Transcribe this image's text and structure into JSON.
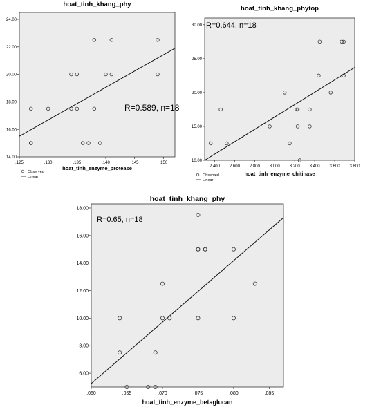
{
  "chart_data": [
    {
      "type": "scatter",
      "title": "hoat_tinh_khang_phy",
      "xlabel": "hoat_tinh_enzyme_protease",
      "ylabel": "",
      "annotation": "R=0.589, n=18",
      "xlim": [
        0.125,
        0.152
      ],
      "ylim": [
        14.0,
        24.5
      ],
      "xticks": [
        ".125",
        ".130",
        ".135",
        ".140",
        ".145",
        ".150"
      ],
      "yticks": [
        "14.00",
        "16.00",
        "18.00",
        "20.00",
        "22.00",
        "24.00"
      ],
      "legend": [
        "Observed",
        "Linear"
      ],
      "legend_position": "bottom-left",
      "points": [
        {
          "x": 0.127,
          "y": 17.5
        },
        {
          "x": 0.127,
          "y": 15.0
        },
        {
          "x": 0.127,
          "y": 15.0
        },
        {
          "x": 0.13,
          "y": 17.5
        },
        {
          "x": 0.134,
          "y": 20.0
        },
        {
          "x": 0.134,
          "y": 17.5
        },
        {
          "x": 0.135,
          "y": 20.0
        },
        {
          "x": 0.135,
          "y": 17.5
        },
        {
          "x": 0.136,
          "y": 15.0
        },
        {
          "x": 0.137,
          "y": 15.0
        },
        {
          "x": 0.138,
          "y": 22.5
        },
        {
          "x": 0.138,
          "y": 17.5
        },
        {
          "x": 0.139,
          "y": 15.0
        },
        {
          "x": 0.14,
          "y": 20.0
        },
        {
          "x": 0.141,
          "y": 22.5
        },
        {
          "x": 0.141,
          "y": 20.0
        },
        {
          "x": 0.149,
          "y": 22.5
        },
        {
          "x": 0.149,
          "y": 20.0
        }
      ],
      "fit_line": [
        {
          "x": 0.125,
          "y": 15.5
        },
        {
          "x": 0.152,
          "y": 21.9
        }
      ]
    },
    {
      "type": "scatter",
      "title": "hoat_tinh_khang_phytop",
      "xlabel": "hoat_tinh_enzyme_chitinase",
      "ylabel": "",
      "annotation": "R=0.644, n=18",
      "xlim": [
        2.3,
        3.8
      ],
      "ylim": [
        10.0,
        31.0
      ],
      "xticks": [
        "2.400",
        "2.600",
        "2.800",
        "3.000",
        "3.200",
        "3.400",
        "3.600",
        "3.800"
      ],
      "yticks": [
        "10.00",
        "15.00",
        "20.00",
        "25.00",
        "30.00"
      ],
      "legend": [
        "Observed",
        "Linear"
      ],
      "legend_position": "bottom-left",
      "points": [
        {
          "x": 2.36,
          "y": 12.5
        },
        {
          "x": 2.46,
          "y": 17.5
        },
        {
          "x": 2.52,
          "y": 12.5
        },
        {
          "x": 2.95,
          "y": 15.0
        },
        {
          "x": 3.1,
          "y": 20.0
        },
        {
          "x": 3.15,
          "y": 12.5
        },
        {
          "x": 3.22,
          "y": 17.5
        },
        {
          "x": 3.23,
          "y": 17.5
        },
        {
          "x": 3.23,
          "y": 15.0
        },
        {
          "x": 3.25,
          "y": 10.0
        },
        {
          "x": 3.35,
          "y": 17.5
        },
        {
          "x": 3.35,
          "y": 15.0
        },
        {
          "x": 3.44,
          "y": 22.5
        },
        {
          "x": 3.45,
          "y": 27.5
        },
        {
          "x": 3.56,
          "y": 20.0
        },
        {
          "x": 3.67,
          "y": 27.5
        },
        {
          "x": 3.69,
          "y": 27.5
        },
        {
          "x": 3.69,
          "y": 22.5
        }
      ],
      "fit_line": [
        {
          "x": 2.3,
          "y": 10.0
        },
        {
          "x": 3.8,
          "y": 23.7
        }
      ]
    },
    {
      "type": "scatter",
      "title": "hoat_tinh_khang_phy",
      "xlabel": "hoat_tinh_enzyme_betaglucan",
      "ylabel": "",
      "annotation": "R=0.65, n=18",
      "xlim": [
        0.06,
        0.087
      ],
      "ylim": [
        5.0,
        18.3
      ],
      "xticks": [
        ".060",
        ".065",
        ".070",
        ".075",
        ".080",
        ".085"
      ],
      "yticks": [
        "6.00",
        "8.00",
        "10.00",
        "12.00",
        "14.00",
        "16.00",
        "18.00"
      ],
      "points": [
        {
          "x": 0.064,
          "y": 10.0
        },
        {
          "x": 0.064,
          "y": 7.5
        },
        {
          "x": 0.065,
          "y": 5.0
        },
        {
          "x": 0.068,
          "y": 5.0
        },
        {
          "x": 0.069,
          "y": 7.5
        },
        {
          "x": 0.069,
          "y": 5.0
        },
        {
          "x": 0.07,
          "y": 12.5
        },
        {
          "x": 0.07,
          "y": 10.0
        },
        {
          "x": 0.071,
          "y": 10.0
        },
        {
          "x": 0.075,
          "y": 17.5
        },
        {
          "x": 0.075,
          "y": 15.0
        },
        {
          "x": 0.075,
          "y": 15.0
        },
        {
          "x": 0.075,
          "y": 10.0
        },
        {
          "x": 0.076,
          "y": 15.0
        },
        {
          "x": 0.076,
          "y": 15.0
        },
        {
          "x": 0.08,
          "y": 15.0
        },
        {
          "x": 0.08,
          "y": 10.0
        },
        {
          "x": 0.083,
          "y": 12.5
        }
      ],
      "fit_line": [
        {
          "x": 0.06,
          "y": 5.25
        },
        {
          "x": 0.087,
          "y": 17.3
        }
      ]
    }
  ]
}
